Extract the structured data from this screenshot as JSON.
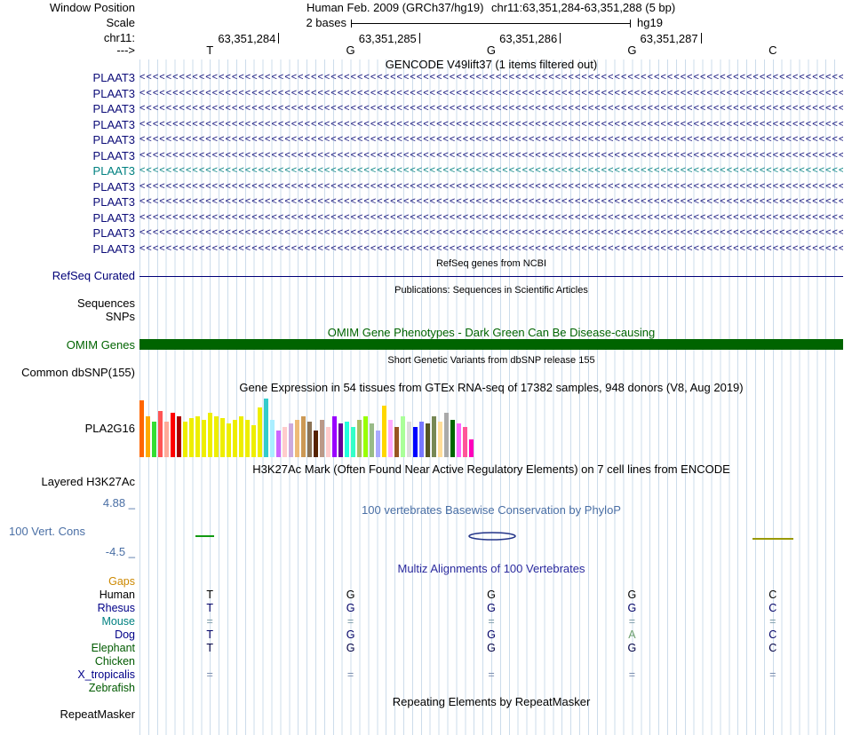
{
  "header": {
    "window_position_label": "Window Position",
    "assembly": "Human Feb. 2009 (GRCh37/hg19)",
    "position": "chr11:63,351,284-63,351,288 (5 bp)",
    "scale_label": "Scale",
    "scale_value": "2 bases",
    "genome": "hg19",
    "chrom_label": "chr11:",
    "coords": [
      "63,351,284",
      "63,351,285",
      "63,351,286",
      "63,351,287"
    ],
    "direction_label": "--->",
    "bases": [
      "T",
      "G",
      "G",
      "G",
      "C"
    ]
  },
  "gencode": {
    "title": "GENCODE V49lift37 (1 items filtered out)",
    "arrow_char": "<",
    "transcripts": [
      {
        "label": "PLAAT3",
        "color": "#0c0c78"
      },
      {
        "label": "PLAAT3",
        "color": "#0c0c78"
      },
      {
        "label": "PLAAT3",
        "color": "#0c0c78"
      },
      {
        "label": "PLAAT3",
        "color": "#0c0c78"
      },
      {
        "label": "PLAAT3",
        "color": "#0c0c78"
      },
      {
        "label": "PLAAT3",
        "color": "#0c0c78"
      },
      {
        "label": "PLAAT3",
        "color": "#008080"
      },
      {
        "label": "PLAAT3",
        "color": "#0c0c78"
      },
      {
        "label": "PLAAT3",
        "color": "#0c0c78"
      },
      {
        "label": "PLAAT3",
        "color": "#0c0c78"
      },
      {
        "label": "PLAAT3",
        "color": "#0c0c78"
      },
      {
        "label": "PLAAT3",
        "color": "#0c0c78"
      }
    ]
  },
  "refseq": {
    "title": "RefSeq genes from NCBI",
    "track_label": "RefSeq Curated",
    "color": "#000078"
  },
  "publications": {
    "title": "Publications: Sequences in Scientific Articles",
    "sequences_label": "Sequences",
    "snps_label": "SNPs"
  },
  "omim": {
    "title": "OMIM Gene Phenotypes - Dark Green Can Be Disease-causing",
    "track_label": "OMIM Genes",
    "bar_color": "#006400"
  },
  "dbsnp": {
    "title": "Short Genetic Variants from dbSNP release 155",
    "track_label": "Common dbSNP(155)"
  },
  "gtex": {
    "title": "Gene Expression in 54 tissues from GTEx RNA-seq of 17382 samples, 948 donors (V8, Aug 2019)",
    "gene_label": "PLA2G16"
  },
  "chart_data": {
    "type": "bar",
    "title": "Gene Expression in 54 tissues from GTEx RNA-seq of 17382 samples, 948 donors (V8, Aug 2019)",
    "gene": "PLA2G16",
    "unit": "relative bar height in pixels (no numeric axis shown in image)",
    "bars": [
      {
        "color": "#FF6600",
        "value": 64
      },
      {
        "color": "#FFAA00",
        "value": 46
      },
      {
        "color": "#33DD33",
        "value": 40
      },
      {
        "color": "#FF5555",
        "value": 52
      },
      {
        "color": "#FFAA99",
        "value": 40
      },
      {
        "color": "#FF0000",
        "value": 50
      },
      {
        "color": "#AA0000",
        "value": 46
      },
      {
        "color": "#EEEE00",
        "value": 40
      },
      {
        "color": "#EEEE00",
        "value": 44
      },
      {
        "color": "#EEEE00",
        "value": 46
      },
      {
        "color": "#EEEE00",
        "value": 42
      },
      {
        "color": "#EEEE00",
        "value": 50
      },
      {
        "color": "#EEEE00",
        "value": 46
      },
      {
        "color": "#EEEE00",
        "value": 44
      },
      {
        "color": "#EEEE00",
        "value": 38
      },
      {
        "color": "#EEEE00",
        "value": 42
      },
      {
        "color": "#EEEE00",
        "value": 46
      },
      {
        "color": "#EEEE00",
        "value": 42
      },
      {
        "color": "#EEEE00",
        "value": 36
      },
      {
        "color": "#EEEE00",
        "value": 56
      },
      {
        "color": "#33CCCC",
        "value": 66
      },
      {
        "color": "#AAEEFF",
        "value": 42
      },
      {
        "color": "#CC66FF",
        "value": 30
      },
      {
        "color": "#FFCCCC",
        "value": 34
      },
      {
        "color": "#CCAADD",
        "value": 38
      },
      {
        "color": "#EEBB77",
        "value": 42
      },
      {
        "color": "#CC9955",
        "value": 46
      },
      {
        "color": "#8B7355",
        "value": 40
      },
      {
        "color": "#552200",
        "value": 30
      },
      {
        "color": "#BB9988",
        "value": 42
      },
      {
        "color": "#FFCCCC",
        "value": 34
      },
      {
        "color": "#9900FF",
        "value": 46
      },
      {
        "color": "#660099",
        "value": 38
      },
      {
        "color": "#22FFDD",
        "value": 40
      },
      {
        "color": "#33FFC9",
        "value": 34
      },
      {
        "color": "#AABB66",
        "value": 42
      },
      {
        "color": "#99FF00",
        "value": 46
      },
      {
        "color": "#99BB88",
        "value": 38
      },
      {
        "color": "#AAAAFF",
        "value": 30
      },
      {
        "color": "#FFD700",
        "value": 58
      },
      {
        "color": "#FFAAFF",
        "value": 42
      },
      {
        "color": "#995522",
        "value": 34
      },
      {
        "color": "#AAFF99",
        "value": 46
      },
      {
        "color": "#DDDDDD",
        "value": 40
      },
      {
        "color": "#0000FF",
        "value": 34
      },
      {
        "color": "#7777FF",
        "value": 40
      },
      {
        "color": "#555522",
        "value": 38
      },
      {
        "color": "#778855",
        "value": 46
      },
      {
        "color": "#FFDD99",
        "value": 40
      },
      {
        "color": "#AAAAAA",
        "value": 50
      },
      {
        "color": "#006600",
        "value": 42
      },
      {
        "color": "#FF66FF",
        "value": 38
      },
      {
        "color": "#FF5599",
        "value": 34
      },
      {
        "color": "#FF00BB",
        "value": 20
      }
    ]
  },
  "h3k27ac": {
    "title": "H3K27Ac Mark (Often Found Near Active Regulatory Elements) on 7 cell lines from ENCODE",
    "track_label": "Layered H3K27Ac"
  },
  "conservation": {
    "title": "100 vertebrates Basewise Conservation by PhyloP",
    "track_label": "100 Vert. Cons",
    "max_label": "4.88 _",
    "min_label": "-4.5 _"
  },
  "alignment": {
    "title": "Multiz Alignments of 100 Vertebrates",
    "species": [
      {
        "name": "Gaps",
        "color": "#cc8800",
        "bases": [
          "",
          "",
          "",
          "",
          ""
        ]
      },
      {
        "name": "Human",
        "color": "#000000",
        "base_color": "#000000",
        "bases": [
          "T",
          "G",
          "G",
          "G",
          "C"
        ]
      },
      {
        "name": "Rhesus",
        "color": "#000088",
        "base_color": "#000066",
        "bases": [
          "T",
          "G",
          "G",
          "G",
          "C"
        ]
      },
      {
        "name": "Mouse",
        "color": "#008080",
        "base_color": "#7d9ca8",
        "bases": [
          "=",
          "=",
          "=",
          "=",
          "="
        ]
      },
      {
        "name": "Dog",
        "color": "#000088",
        "base_color": "#000066",
        "base_colors": [
          "#000066",
          "#000066",
          "#000066",
          "#6fa06f",
          "#000066"
        ],
        "bases": [
          "T",
          "G",
          "G",
          "A",
          "C"
        ]
      },
      {
        "name": "Elephant",
        "color": "#005a00",
        "base_color": "#000044",
        "bases": [
          "T",
          "G",
          "G",
          "G",
          "C"
        ]
      },
      {
        "name": "Chicken",
        "color": "#005a00",
        "bases": [
          "",
          "",
          "",
          "",
          ""
        ]
      },
      {
        "name": "X_tropicalis",
        "color": "#000088",
        "base_color": "#7d8fb0",
        "bases": [
          "=",
          "=",
          "=",
          "=",
          "="
        ]
      },
      {
        "name": "Zebrafish",
        "color": "#005a00",
        "bases": [
          "",
          "",
          "",
          "",
          ""
        ]
      }
    ]
  },
  "repeatmasker": {
    "title": "Repeating Elements by RepeatMasker",
    "track_label": "RepeatMasker"
  }
}
